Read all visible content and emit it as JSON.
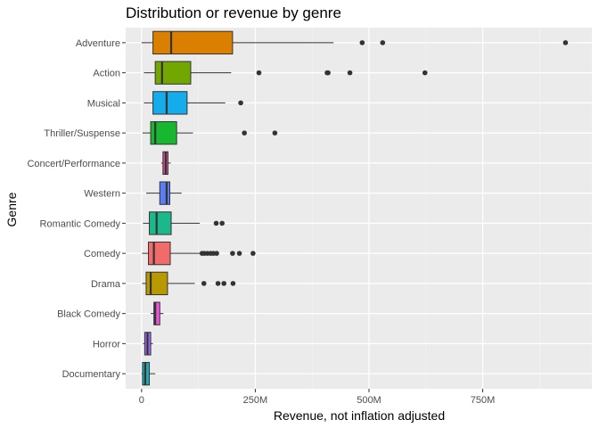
{
  "chart_data": {
    "type": "boxplot",
    "title": "Distribution or revenue by genre",
    "xlabel": "Revenue, not inflation adjusted",
    "ylabel": "Genre",
    "xlim": [
      -35,
      990
    ],
    "x_ticks": [
      0,
      250,
      500,
      750
    ],
    "x_tick_labels": [
      "0",
      "250M",
      "500M",
      "750M"
    ],
    "x_unit": "millions",
    "orientation": "horizontal",
    "grid": true,
    "legend": "none",
    "categories": [
      {
        "name": "Adventure",
        "color": "#DB7F00",
        "whisker_low": 0,
        "q1": 25,
        "median": 65,
        "q3": 200,
        "whisker_high": 422,
        "outliers": [
          485,
          530,
          932
        ]
      },
      {
        "name": "Action",
        "color": "#72A600",
        "whisker_low": 5,
        "q1": 30,
        "median": 45,
        "q3": 108,
        "whisker_high": 197,
        "outliers": [
          258,
          408,
          410,
          458,
          623
        ]
      },
      {
        "name": "Musical",
        "color": "#14ACEA",
        "whisker_low": 5,
        "q1": 25,
        "median": 55,
        "q3": 100,
        "whisker_high": 184,
        "outliers": [
          218
        ]
      },
      {
        "name": "Thriller/Suspense",
        "color": "#17B830",
        "whisker_low": 2,
        "q1": 20,
        "median": 30,
        "q3": 77,
        "whisker_high": 113,
        "outliers": [
          226,
          293
        ]
      },
      {
        "name": "Concert/Performance",
        "color": "#E04A9C",
        "whisker_low": 43,
        "q1": 47,
        "median": 53,
        "q3": 58,
        "whisker_high": 64,
        "outliers": []
      },
      {
        "name": "Western",
        "color": "#5B7DF5",
        "whisker_low": 10,
        "q1": 40,
        "median": 55,
        "q3": 62,
        "whisker_high": 88,
        "outliers": []
      },
      {
        "name": "Romantic Comedy",
        "color": "#1AB88A",
        "whisker_low": 3,
        "q1": 17,
        "median": 33,
        "q3": 65,
        "whisker_high": 128,
        "outliers": [
          164,
          177
        ]
      },
      {
        "name": "Comedy",
        "color": "#F26B6B",
        "whisker_low": 1,
        "q1": 15,
        "median": 27,
        "q3": 63,
        "whisker_high": 131,
        "outliers": [
          133,
          138,
          145,
          152,
          158,
          165,
          200,
          215,
          245
        ]
      },
      {
        "name": "Drama",
        "color": "#B89A00",
        "whisker_low": 1,
        "q1": 10,
        "median": 20,
        "q3": 57,
        "whisker_high": 117,
        "outliers": [
          137,
          168,
          181,
          201
        ]
      },
      {
        "name": "Black Comedy",
        "color": "#F44FE0",
        "whisker_low": 20,
        "q1": 27,
        "median": 30,
        "q3": 40,
        "whisker_high": 48,
        "outliers": []
      },
      {
        "name": "Horror",
        "color": "#9E69F5",
        "whisker_low": 3,
        "q1": 7,
        "median": 13,
        "q3": 20,
        "whisker_high": 25,
        "outliers": []
      },
      {
        "name": "Documentary",
        "color": "#1FA9B5",
        "whisker_low": 0,
        "q1": 2,
        "median": 8,
        "q3": 17,
        "whisker_high": 30,
        "outliers": []
      }
    ]
  }
}
